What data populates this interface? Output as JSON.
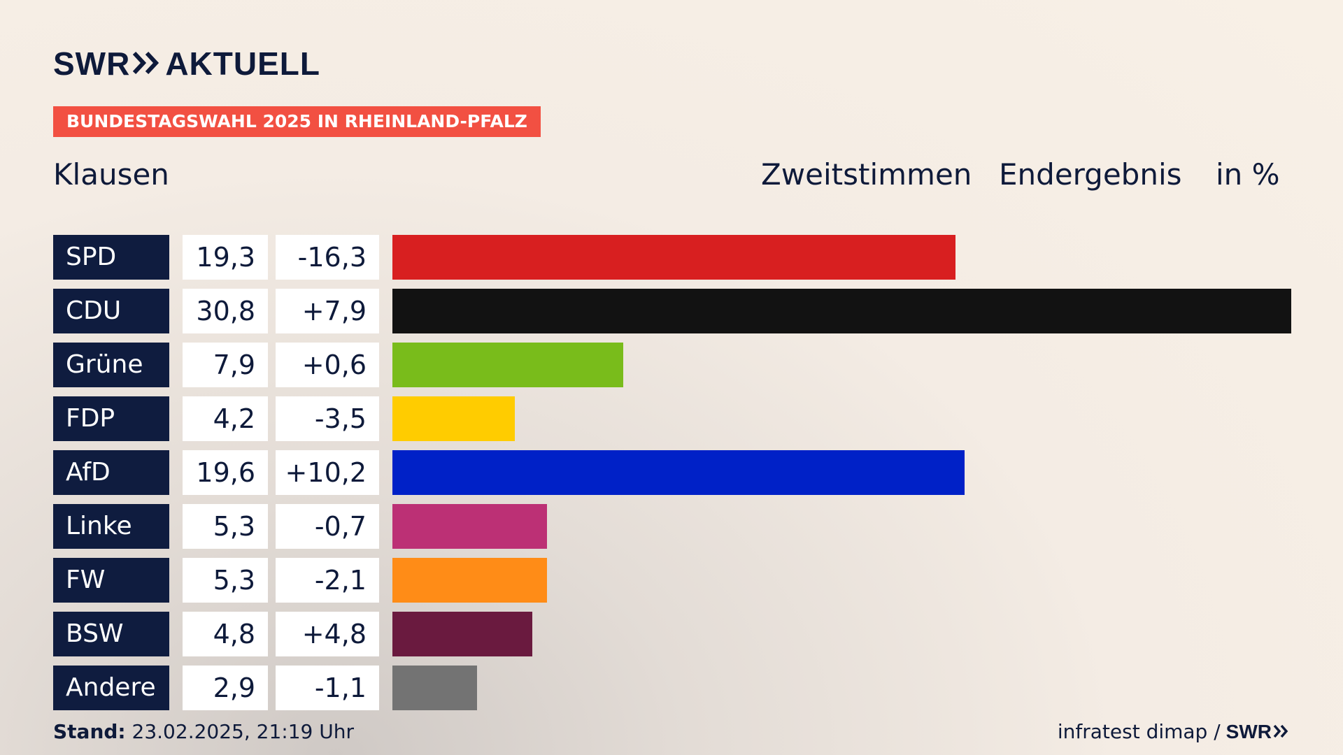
{
  "brand": {
    "logo_left": "SWR",
    "logo_right": "AKTUELL",
    "chevron_icon": "double-chevron-right-icon"
  },
  "badge": "BUNDESTAGSWAHL 2025 IN RHEINLAND-PFALZ",
  "region": "Klausen",
  "headings": {
    "vote_type": "Zweitstimmen",
    "result_type": "Endergebnis",
    "unit": "in %"
  },
  "chart_data": {
    "type": "bar",
    "orientation": "horizontal",
    "categories": [
      "SPD",
      "CDU",
      "Grüne",
      "FDP",
      "AfD",
      "Linke",
      "FW",
      "BSW",
      "Andere"
    ],
    "values": [
      19.3,
      30.8,
      7.9,
      4.2,
      19.6,
      5.3,
      5.3,
      4.8,
      2.9
    ],
    "value_labels": [
      "19,3",
      "30,8",
      "7,9",
      "4,2",
      "19,6",
      "5,3",
      "5,3",
      "4,8",
      "2,9"
    ],
    "change_labels": [
      "-16,3",
      "+7,9",
      "+0,6",
      "-3,5",
      "+10,2",
      "-0,7",
      "-2,1",
      "+4,8",
      "-1,1"
    ],
    "changes": [
      -16.3,
      7.9,
      0.6,
      -3.5,
      10.2,
      -0.7,
      -2.1,
      4.8,
      -1.1
    ],
    "colors": [
      "#d81f20",
      "#121212",
      "#79bc1b",
      "#ffcc00",
      "#0021c7",
      "#bc3075",
      "#ff8c17",
      "#6a1a3f",
      "#737373"
    ],
    "xlim": [
      0,
      30.8
    ],
    "grid": false,
    "legend": "none"
  },
  "footer": {
    "stand_label": "Stand:",
    "stand_value": "23.02.2025, 21:19 Uhr",
    "source": "infratest dimap /",
    "source_logo": "SWR"
  }
}
